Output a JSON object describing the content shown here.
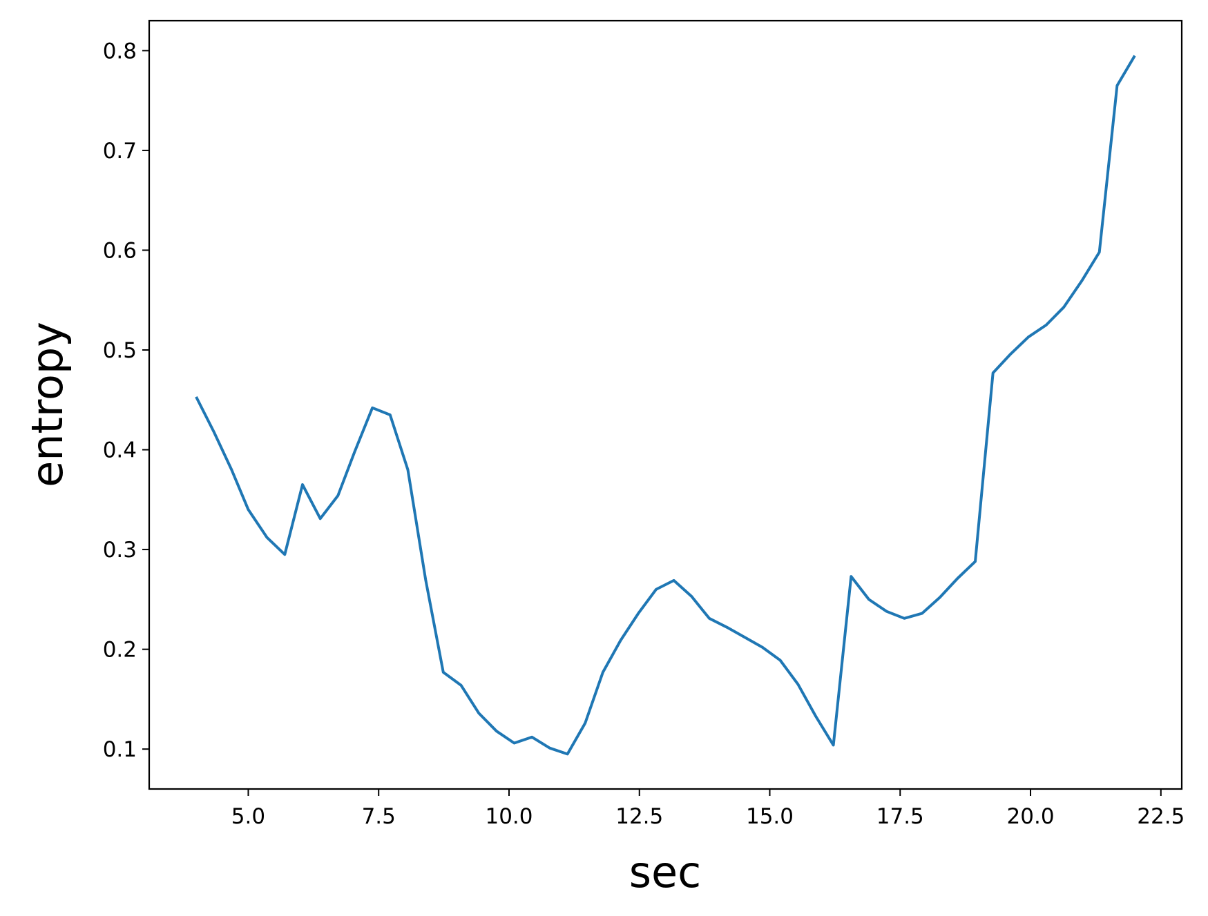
{
  "chart_data": {
    "type": "line",
    "title": "",
    "xlabel": "sec",
    "ylabel": "entropy",
    "xlim": [
      3.1,
      22.9
    ],
    "ylim": [
      0.06,
      0.83
    ],
    "xticks": [
      5.0,
      7.5,
      10.0,
      12.5,
      15.0,
      17.5,
      20.0,
      22.5
    ],
    "xtick_labels": [
      "5.0",
      "7.5",
      "10.0",
      "12.5",
      "15.0",
      "17.5",
      "20.0",
      "22.5"
    ],
    "yticks": [
      0.1,
      0.2,
      0.3,
      0.4,
      0.5,
      0.6,
      0.7,
      0.8
    ],
    "ytick_labels": [
      "0.1",
      "0.2",
      "0.3",
      "0.4",
      "0.5",
      "0.6",
      "0.7",
      "0.8"
    ],
    "grid": false,
    "line_color": "#1f77b4",
    "series": [
      {
        "x": [
          4.0,
          4.34,
          4.68,
          5.0,
          5.36,
          5.7,
          6.04,
          6.38,
          6.72,
          7.04,
          7.38,
          7.72,
          8.06,
          8.4,
          8.74,
          9.08,
          9.42,
          9.76,
          10.1,
          10.44,
          10.78,
          11.12,
          11.46,
          11.8,
          12.14,
          12.48,
          12.82,
          13.16,
          13.5,
          13.84,
          14.18,
          14.52,
          14.86,
          15.2,
          15.54,
          15.88,
          16.22,
          16.56,
          16.9,
          17.24,
          17.58,
          17.92,
          18.26,
          18.6,
          18.94,
          19.28,
          19.62,
          19.96,
          20.3,
          20.64,
          20.98,
          21.32,
          21.66,
          22.0
        ],
        "y": [
          0.453,
          0.418,
          0.38,
          0.34,
          0.312,
          0.295,
          0.365,
          0.331,
          0.354,
          0.398,
          0.442,
          0.435,
          0.38,
          0.27,
          0.177,
          0.164,
          0.136,
          0.118,
          0.106,
          0.112,
          0.101,
          0.095,
          0.126,
          0.177,
          0.209,
          0.236,
          0.26,
          0.269,
          0.253,
          0.231,
          0.222,
          0.212,
          0.202,
          0.189,
          0.165,
          0.133,
          0.104,
          0.273,
          0.25,
          0.238,
          0.231,
          0.236,
          0.252,
          0.271,
          0.288,
          0.477,
          0.496,
          0.513,
          0.525,
          0.543,
          0.569,
          0.598,
          0.765,
          0.795
        ]
      }
    ]
  }
}
